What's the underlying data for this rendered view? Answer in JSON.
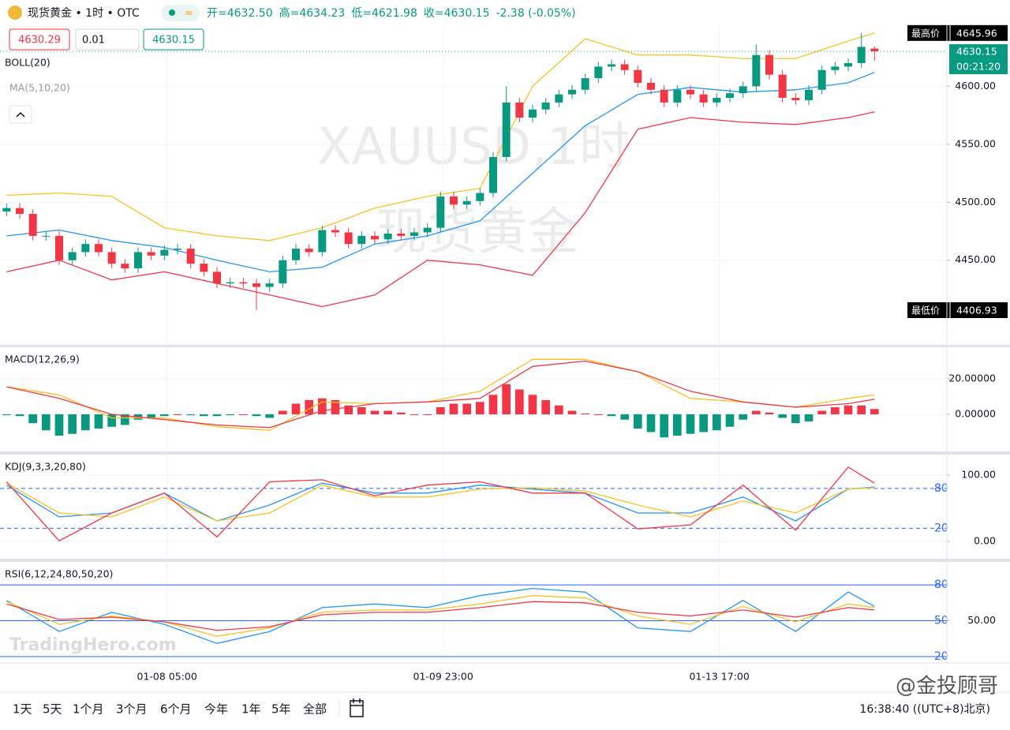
{
  "header": {
    "symbol": "现货黄金 • 1时 • OTC",
    "ohlc": [
      "开=4632.50",
      "高=4634.23",
      "低=4621.98",
      "收=4630.15",
      "-2.38 (-0.05%)"
    ],
    "order_sell": "4630.29",
    "order_qty": "0.01",
    "order_buy": "4630.15",
    "watermark": "XAUUSD,1时",
    "watermark2": "现货黄金",
    "brand": "TradingHero.com"
  },
  "chart_data": [
    {
      "type": "candlestick",
      "title": "BOLL(20)",
      "subtitle": "MA(5,10,20)",
      "xlim": [
        -0.5,
        71.5
      ],
      "ylim": [
        4377,
        4654
      ],
      "yticks": [
        {
          "value": 4450,
          "label": "4450.00"
        },
        {
          "value": 4500,
          "label": "4500.00"
        },
        {
          "value": 4550,
          "label": "4550.00"
        },
        {
          "value": 4600,
          "label": "4600.00"
        }
      ],
      "up_color": "#089981",
      "down_color": "#f23645",
      "x": [
        0,
        1,
        2,
        3,
        4,
        5,
        6,
        7,
        8,
        9,
        10,
        11,
        12,
        13,
        14,
        15,
        16,
        17,
        18,
        19,
        20,
        21,
        22,
        23,
        24,
        25,
        26,
        27,
        28,
        29,
        30,
        31,
        32,
        33,
        34,
        35,
        36,
        37,
        38,
        39,
        40,
        41,
        42,
        43,
        44,
        45,
        46,
        47,
        48,
        49,
        50,
        51,
        52,
        53,
        54,
        55,
        56,
        57,
        58,
        59,
        60,
        61,
        62,
        63,
        64,
        65,
        66
      ],
      "open": [
        4492,
        4495,
        4490,
        4471,
        4471,
        4450,
        4457,
        4464,
        4457,
        4447,
        4443,
        4457,
        4454,
        4459,
        4460,
        4447,
        4440,
        4430,
        4431,
        4430,
        4427,
        4430,
        4450,
        4460,
        4457,
        4476,
        4474,
        4464,
        4471,
        4468,
        4473,
        4471,
        4474,
        4478,
        4505,
        4498,
        4501,
        4508,
        4539,
        4586,
        4573,
        4580,
        4586,
        4593,
        4597,
        4607,
        4617,
        4619,
        4614,
        4603,
        4597,
        4586,
        4597,
        4593,
        4586,
        4590,
        4594,
        4600,
        4627,
        4610,
        4590,
        4588,
        4597,
        4614,
        4617,
        4620,
        4632.5
      ],
      "high": [
        4499,
        4499,
        4494,
        4475,
        4475,
        4461,
        4468,
        4468,
        4461,
        4451,
        4461,
        4461,
        4463,
        4464,
        4464,
        4451,
        4444,
        4435,
        4435,
        4434,
        4434,
        4454,
        4464,
        4464,
        4480,
        4480,
        4478,
        4475,
        4475,
        4477,
        4477,
        4478,
        4482,
        4509,
        4509,
        4505,
        4512,
        4543,
        4600,
        4590,
        4584,
        4590,
        4597,
        4601,
        4611,
        4621,
        4623,
        4623,
        4618,
        4607,
        4601,
        4601,
        4601,
        4597,
        4594,
        4598,
        4604,
        4636,
        4631,
        4614,
        4594,
        4601,
        4618,
        4621,
        4624,
        4646,
        4634.23
      ],
      "low": [
        4488,
        4486,
        4467,
        4467,
        4446,
        4446,
        4453,
        4453,
        4443,
        4439,
        4439,
        4450,
        4450,
        4455,
        4443,
        4436,
        4426,
        4426,
        4426,
        4407,
        4423,
        4426,
        4446,
        4453,
        4453,
        4470,
        4460,
        4460,
        4464,
        4464,
        4467,
        4467,
        4470,
        4474,
        4494,
        4494,
        4497,
        4504,
        4535,
        4569,
        4569,
        4576,
        4582,
        4589,
        4593,
        4603,
        4613,
        4610,
        4599,
        4593,
        4582,
        4582,
        4589,
        4582,
        4582,
        4586,
        4590,
        4596,
        4606,
        4586,
        4584,
        4584,
        4593,
        4610,
        4613,
        4616,
        4621.98
      ],
      "close": [
        4495,
        4490,
        4471,
        4471,
        4450,
        4457,
        4464,
        4457,
        4447,
        4443,
        4457,
        4454,
        4459,
        4460,
        4447,
        4440,
        4430,
        4431,
        4430,
        4427,
        4430,
        4450,
        4460,
        4457,
        4476,
        4474,
        4464,
        4471,
        4468,
        4473,
        4471,
        4474,
        4478,
        4505,
        4498,
        4501,
        4508,
        4539,
        4586,
        4573,
        4580,
        4586,
        4593,
        4597,
        4607,
        4617,
        4619,
        4614,
        4603,
        4597,
        4586,
        4597,
        4593,
        4586,
        4590,
        4594,
        4600,
        4627,
        4610,
        4590,
        4588,
        4597,
        4614,
        4617,
        4620,
        4634,
        4630.15
      ],
      "series": [
        {
          "color": "#f7c325",
          "x": [
            0,
            4,
            8,
            12,
            16,
            20,
            24,
            28,
            32,
            36,
            40,
            44,
            48,
            52,
            56,
            60,
            64,
            66
          ],
          "values": [
            4506,
            4508,
            4505,
            4478,
            4471,
            4467,
            4478,
            4495,
            4505,
            4512,
            4600,
            4641,
            4627,
            4627,
            4624,
            4624,
            4639,
            4646
          ]
        },
        {
          "color": "#2196f3",
          "x": [
            0,
            4,
            8,
            12,
            16,
            20,
            24,
            28,
            32,
            36,
            40,
            44,
            48,
            52,
            56,
            60,
            64,
            66
          ],
          "values": [
            4471,
            4476,
            4467,
            4461,
            4450,
            4440,
            4444,
            4464,
            4471,
            4484,
            4525,
            4566,
            4593,
            4599,
            4595,
            4597,
            4603,
            4612
          ]
        },
        {
          "color": "#f23645",
          "x": [
            0,
            4,
            8,
            12,
            16,
            20,
            24,
            28,
            32,
            36,
            40,
            44,
            48,
            52,
            56,
            60,
            64,
            66
          ],
          "values": [
            4440,
            4450,
            4433,
            4440,
            4430,
            4420,
            4410,
            4420,
            4450,
            4446,
            4437,
            4491,
            4563,
            4573,
            4569,
            4567,
            4573,
            4578
          ]
        }
      ],
      "high_label": "最高价",
      "high_value": 4645.96,
      "last_price": 4630.15,
      "countdown": "00:21:20",
      "low_label": "最低价",
      "low_value": 4406.93
    },
    {
      "type": "macd",
      "title": "MACD(12,26,9)",
      "xlim": [
        -0.5,
        71.5
      ],
      "ylim": [
        -20.9,
        37.8
      ],
      "yticks": [
        {
          "value": 20,
          "label": "20.00000"
        },
        {
          "value": 0,
          "label": "0.00000"
        }
      ],
      "up_color": "#f23645",
      "down_color": "#089981",
      "x": [
        0,
        1,
        2,
        3,
        4,
        5,
        6,
        7,
        8,
        9,
        10,
        11,
        12,
        13,
        14,
        15,
        16,
        17,
        18,
        19,
        20,
        21,
        22,
        23,
        24,
        25,
        26,
        27,
        28,
        29,
        30,
        31,
        32,
        33,
        34,
        35,
        36,
        37,
        38,
        39,
        40,
        41,
        42,
        43,
        44,
        45,
        46,
        47,
        48,
        49,
        50,
        51,
        52,
        53,
        54,
        55,
        56,
        57,
        58,
        59,
        60,
        61,
        62,
        63,
        64,
        65,
        66
      ],
      "histogram": [
        -0.5,
        -1,
        -5,
        -9,
        -12,
        -11,
        -9,
        -8,
        -7,
        -6,
        -3,
        -2,
        -1,
        0,
        -0.5,
        -1,
        -1,
        -0.5,
        0,
        -1,
        -2,
        2,
        6,
        8,
        9,
        8,
        5,
        4,
        2,
        2,
        1,
        0,
        0,
        4,
        6,
        6,
        7,
        11,
        17,
        14,
        11,
        8,
        5,
        2,
        0.5,
        0,
        -1,
        -3,
        -8,
        -10,
        -13,
        -12,
        -11,
        -10,
        -9,
        -7,
        -3,
        2,
        1,
        -2,
        -5,
        -4,
        2,
        4,
        5,
        5,
        3
      ],
      "series": [
        {
          "color": "#f7c325",
          "x": [
            0,
            4,
            8,
            12,
            16,
            20,
            24,
            28,
            32,
            36,
            40,
            44,
            48,
            52,
            56,
            60,
            64,
            66
          ],
          "values": [
            15.5,
            11,
            -2,
            -2,
            -7,
            -9,
            7,
            6,
            7,
            13,
            31,
            31,
            24,
            9,
            7,
            4,
            9,
            11
          ]
        },
        {
          "color": "#f23645",
          "x": [
            0,
            4,
            8,
            12,
            16,
            20,
            24,
            28,
            32,
            36,
            40,
            44,
            48,
            52,
            56,
            60,
            64,
            66
          ],
          "values": [
            15.5,
            9,
            0,
            -3,
            -6,
            -7.5,
            2,
            6,
            7,
            9,
            27,
            30,
            24,
            13,
            7,
            4,
            6,
            8.5
          ]
        }
      ]
    },
    {
      "type": "line",
      "title": "KDJ(9,3,3,20,80)",
      "xlim": [
        -0.5,
        71.5
      ],
      "ylim": [
        -26,
        131
      ],
      "yticks": [
        {
          "value": 100,
          "label": "100.00"
        },
        {
          "value": 0,
          "label": "0.00"
        }
      ],
      "bands": [
        80,
        20
      ],
      "band_style": "dashed",
      "band_color": "#2962ff",
      "series": [
        {
          "color": "#2196f3",
          "x": [
            0,
            4,
            8,
            12,
            16,
            20,
            24,
            28,
            32,
            36,
            40,
            44,
            48,
            52,
            56,
            60,
            64,
            66
          ],
          "values": [
            85,
            37,
            43,
            73,
            31,
            55,
            88,
            73,
            73,
            85,
            79,
            73,
            43,
            43,
            67,
            31,
            79,
            82
          ]
        },
        {
          "color": "#f7c325",
          "x": [
            0,
            4,
            8,
            12,
            16,
            20,
            24,
            28,
            32,
            36,
            40,
            44,
            48,
            52,
            56,
            60,
            64,
            66
          ],
          "values": [
            88,
            43,
            37,
            67,
            31,
            43,
            85,
            67,
            67,
            79,
            81,
            76,
            55,
            37,
            61,
            43,
            79,
            81
          ]
        },
        {
          "color": "#f23645",
          "x": [
            0,
            4,
            8,
            12,
            16,
            20,
            24,
            28,
            32,
            36,
            40,
            44,
            48,
            52,
            56,
            60,
            64,
            66
          ],
          "values": [
            90,
            1,
            43,
            73,
            7,
            90,
            93,
            69,
            85,
            90,
            73,
            73,
            19,
            25,
            85,
            17,
            112,
            88
          ]
        }
      ]
    },
    {
      "type": "line",
      "title": "RSI(6,12,24,80,50,20)",
      "xlim": [
        -0.5,
        71.5
      ],
      "ylim": [
        14.7,
        99.2
      ],
      "yticks": [
        {
          "value": 50,
          "label": "50.00"
        }
      ],
      "bands": [
        80,
        50,
        20
      ],
      "band_style": "solid",
      "band_color": "#2962ff",
      "xticks": [
        {
          "value": 12.2,
          "label": "01-08 05:00"
        },
        {
          "value": 33.2,
          "label": "01-09 23:00"
        },
        {
          "value": 54.2,
          "label": "01-13 17:00"
        }
      ],
      "series": [
        {
          "color": "#2196f3",
          "x": [
            0,
            4,
            8,
            12,
            16,
            20,
            24,
            28,
            32,
            36,
            40,
            44,
            48,
            52,
            56,
            60,
            64,
            66
          ],
          "values": [
            67,
            41,
            57,
            47,
            31,
            41,
            61,
            64,
            61,
            71,
            77,
            74,
            44,
            41,
            67,
            41,
            74,
            62
          ]
        },
        {
          "color": "#f7c325",
          "x": [
            0,
            4,
            8,
            12,
            16,
            20,
            24,
            28,
            32,
            36,
            40,
            44,
            48,
            52,
            56,
            60,
            64,
            66
          ],
          "values": [
            66,
            47,
            54,
            49,
            37,
            44,
            57,
            59,
            59,
            64,
            71,
            69,
            54,
            47,
            62,
            49,
            64,
            61
          ]
        },
        {
          "color": "#f23645",
          "x": [
            0,
            4,
            8,
            12,
            16,
            20,
            24,
            28,
            32,
            36,
            40,
            44,
            48,
            52,
            56,
            60,
            64,
            66
          ],
          "values": [
            64,
            51,
            53,
            49,
            42,
            45,
            55,
            57,
            57,
            61,
            66,
            65,
            57,
            54,
            59,
            53,
            61,
            59
          ]
        }
      ]
    }
  ],
  "footer": {
    "ranges": [
      "1天",
      "5天",
      "1个月",
      "3个月",
      "6个月",
      "今年",
      "1年",
      "5年",
      "全部"
    ],
    "time": "16:38:40 ((UTC+8)北京)",
    "watermark": "@金投顾哥"
  }
}
